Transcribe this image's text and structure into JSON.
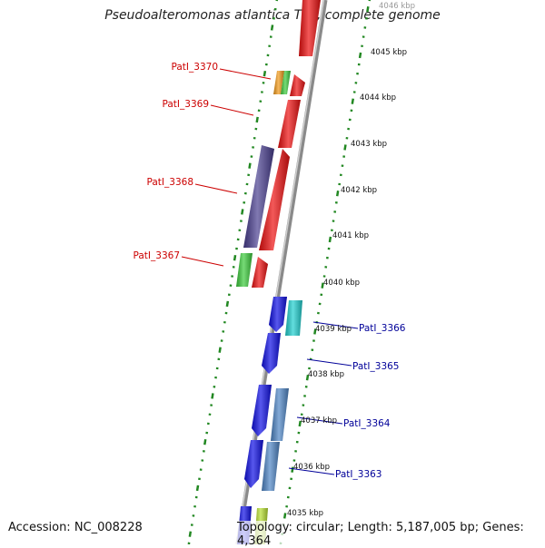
{
  "title": "Pseudoalteromonas atlantica T6c, complete genome",
  "accession": "Accession: NC_008228",
  "summary": "Topology: circular; Length: 5,187,005 bp; Genes: 4,364",
  "colors": {
    "backbone": "#8a8a8a",
    "ticks": "#228822",
    "forward_label": "#cc0000",
    "reverse_label": "#000099"
  },
  "kbp_labels": [
    "4046 kbp",
    "4045 kbp",
    "4044 kbp",
    "4043 kbp",
    "4042 kbp",
    "4041 kbp",
    "4040 kbp",
    "4039 kbp",
    "4038 kbp",
    "4037 kbp",
    "4036 kbp",
    "4035 kbp"
  ],
  "forward_gene_labels": [
    "PatI_3370",
    "PatI_3369",
    "PatI_3368",
    "PatI_3367"
  ],
  "reverse_gene_labels": [
    "PatI_3366",
    "PatI_3365",
    "PatI_3364",
    "PatI_3363"
  ],
  "gene_colors": {
    "red": "#ee1111",
    "orange": "#f29a1a",
    "green": "#3ccc3c",
    "purple": "#4a3f90",
    "blue": "#1010e6",
    "cyan": "#20d0d0",
    "steel": "#4f86c6",
    "yellowgreen": "#b8e030"
  }
}
